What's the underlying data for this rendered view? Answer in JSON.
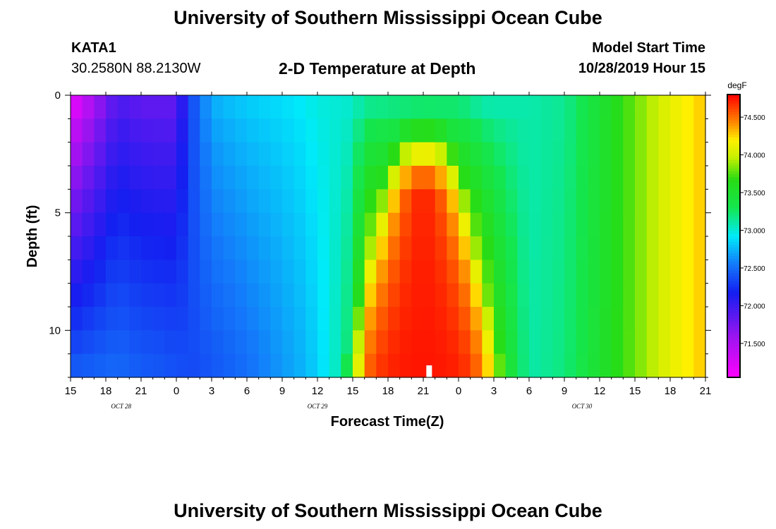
{
  "page": {
    "title": "University of Southern Mississippi Ocean Cube",
    "footer_title": "University of Southern Mississippi Ocean Cube",
    "station_id": "KATA1",
    "station_coords": "30.2580N 88.2130W",
    "plot_title": "2-D Temperature at Depth",
    "model_start_label": "Model Start Time",
    "model_start_value": "10/28/2019 Hour 15"
  },
  "chart_data": {
    "type": "heatmap",
    "title": "2-D Temperature at Depth",
    "xlabel": "Forecast Time(Z)",
    "ylabel": "Depth (ft)",
    "x_range_hours": [
      0,
      54
    ],
    "x_tick_labels": [
      "15",
      "18",
      "21",
      "0",
      "3",
      "6",
      "9",
      "12",
      "15",
      "18",
      "21",
      "0",
      "3",
      "6",
      "9",
      "12",
      "15",
      "18",
      "21"
    ],
    "date_labels": [
      {
        "text": "OCT 28",
        "hour": 4.3
      },
      {
        "text": "OCT 29",
        "hour": 21
      },
      {
        "text": "OCT 30",
        "hour": 43.5
      }
    ],
    "y_range_ft": [
      0,
      12
    ],
    "y_tick_labels": [
      "0",
      "5",
      "10"
    ],
    "y_tick_values": [
      0,
      5,
      10
    ],
    "colorbar": {
      "unit": "degF",
      "range": [
        71.05,
        74.8
      ],
      "tick_values": [
        71.5,
        72.0,
        72.5,
        73.0,
        73.5,
        74.0,
        74.5
      ],
      "tick_labels": [
        "71.500",
        "72.000",
        "72.500",
        "73.000",
        "73.500",
        "74.000",
        "74.500"
      ]
    },
    "depth_levels_ft": [
      0,
      1,
      2,
      3,
      4,
      5,
      6,
      7,
      8,
      9,
      10,
      11,
      12
    ],
    "time_step_hours": 1,
    "temperature_grid_note": "rows = depth levels; cols = hourly forecast steps",
    "anchor_profiles": {
      "hours": [
        0,
        4,
        6,
        9,
        10,
        12,
        15,
        18,
        20,
        21,
        22,
        24,
        25,
        27,
        30,
        33,
        34,
        35,
        37,
        39,
        42,
        44,
        48,
        51,
        54
      ],
      "surface": [
        71.05,
        71.9,
        71.8,
        71.8,
        72.3,
        72.75,
        72.85,
        72.9,
        72.95,
        73.0,
        73.0,
        73.0,
        73.05,
        73.05,
        73.1,
        73.1,
        73.05,
        73.0,
        73.05,
        73.1,
        73.15,
        73.35,
        73.8,
        74.1,
        74.3
      ],
      "bottom": [
        72.45,
        72.5,
        72.45,
        72.4,
        72.35,
        72.4,
        72.5,
        72.65,
        72.75,
        72.85,
        72.95,
        73.3,
        74.3,
        74.55,
        74.7,
        74.6,
        74.45,
        74.2,
        73.55,
        73.1,
        73.2,
        73.4,
        73.8,
        74.1,
        74.3
      ]
    },
    "warm_core": {
      "peak_hour": 30,
      "peak_value": 74.75,
      "top_depth_ft": 2.5
    },
    "marker": {
      "hour": 30.5,
      "depth_ft": 12,
      "color": "#ffffff"
    }
  }
}
